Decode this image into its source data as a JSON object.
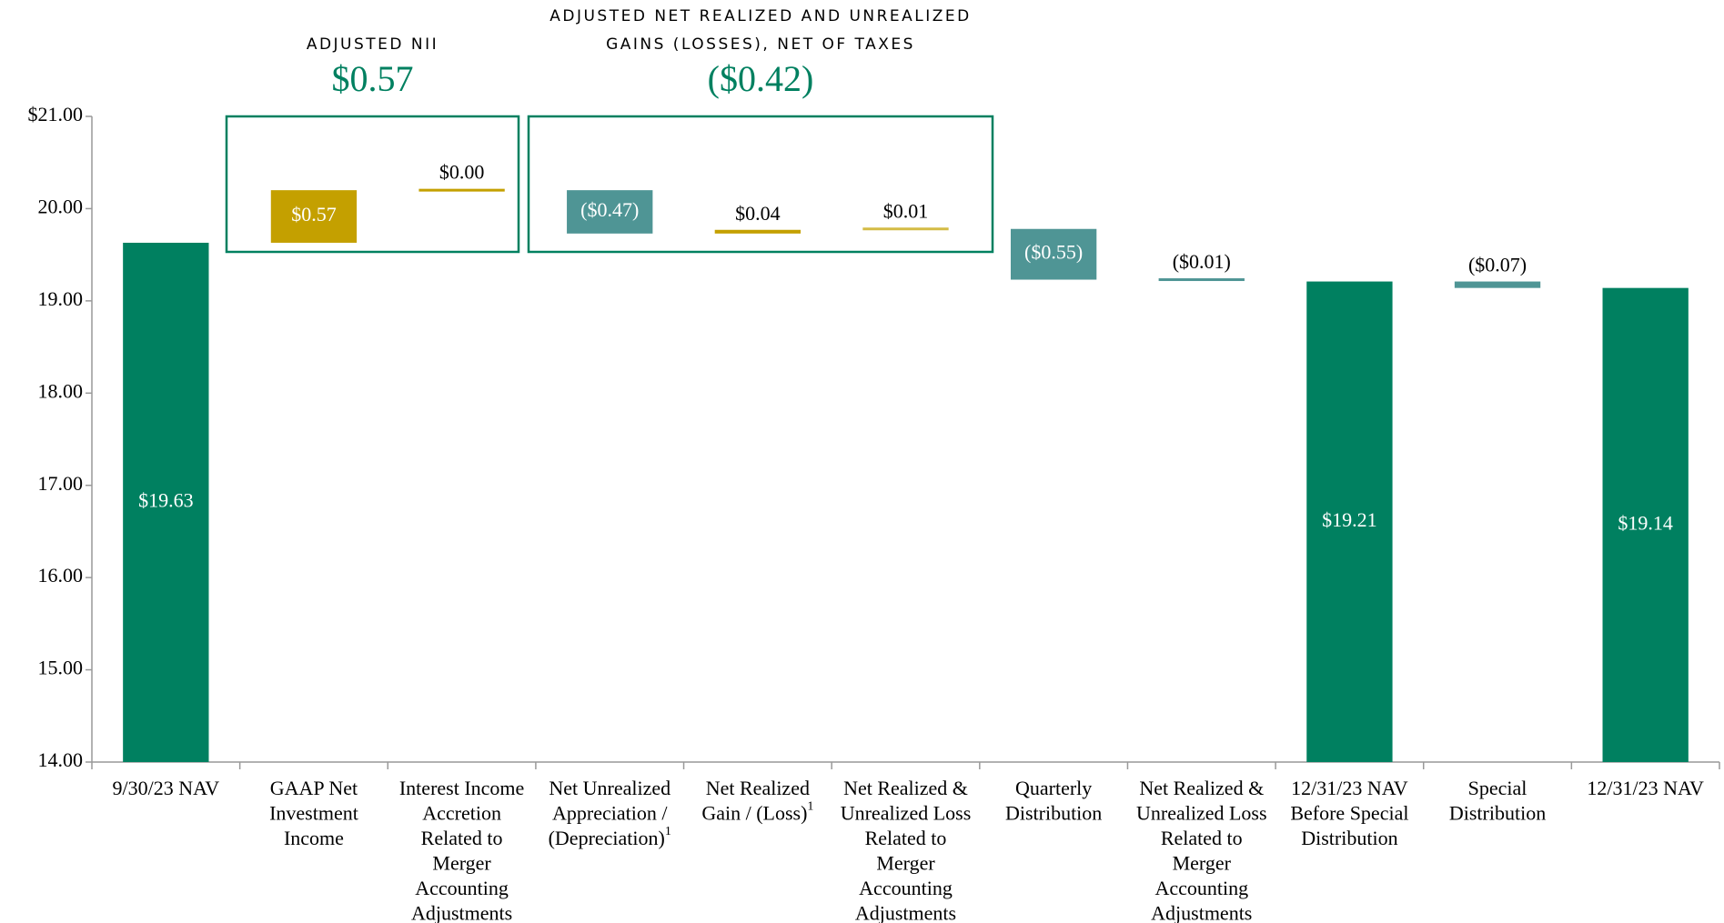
{
  "chart_data": {
    "type": "waterfall",
    "categories": [
      [
        "9/30/23 NAV"
      ],
      [
        "GAAP Net",
        "Investment",
        "Income"
      ],
      [
        "Interest Income",
        "Accretion",
        "Related to",
        "Merger",
        "Accounting",
        "Adjustments"
      ],
      [
        "Net Unrealized",
        "Appreciation /",
        "(Depreciation)"
      ],
      [
        "Net Realized",
        "Gain / (Loss)"
      ],
      [
        "Net Realized &",
        "Unrealized Loss",
        "Related to",
        "Merger",
        "Accounting",
        "Adjustments"
      ],
      [
        "Quarterly",
        "Distribution"
      ],
      [
        "Net Realized &",
        "Unrealized Loss",
        "Related to",
        "Merger",
        "Accounting",
        "Adjustments"
      ],
      [
        "12/31/23 NAV",
        "Before Special",
        "Distribution"
      ],
      [
        "Special",
        "Distribution"
      ],
      [
        "12/31/23 NAV"
      ]
    ],
    "footnotes": [
      null,
      null,
      null,
      "1",
      "1",
      null,
      null,
      null,
      null,
      null,
      null
    ],
    "values": [
      19.63,
      0.57,
      0.0,
      -0.47,
      0.04,
      0.01,
      -0.55,
      -0.01,
      19.21,
      -0.07,
      19.14
    ],
    "value_labels": [
      "$19.63",
      "$0.57",
      "$0.00",
      "($0.47)",
      "$0.04",
      "$0.01",
      "($0.55)",
      "($0.01)",
      "$19.21",
      "($0.07)",
      "$19.14"
    ],
    "colors": [
      "#008060",
      "#c4a000",
      "#c4a000",
      "#4f9595",
      "#c4a000",
      "#d4bb45",
      "#4f9595",
      "#4f9595",
      "#008060",
      "#4f9595",
      "#008060"
    ],
    "total_color": "#008060",
    "ylim": [
      14,
      21
    ],
    "yticks": [
      {
        "value": 14,
        "label": "14.00"
      },
      {
        "value": 15,
        "label": "15.00"
      },
      {
        "value": 16,
        "label": "16.00"
      },
      {
        "value": 17,
        "label": "17.00"
      },
      {
        "value": 18,
        "label": "18.00"
      },
      {
        "value": 19,
        "label": "19.00"
      },
      {
        "value": 20,
        "label": "20.00"
      },
      {
        "value": 21,
        "label": "$21.00"
      }
    ],
    "groups": [
      {
        "title": [
          "ADJUSTED NII"
        ],
        "value": 0.57,
        "value_label": "$0.57"
      },
      {
        "title": [
          "ADJUSTED NET REALIZED AND UNREALIZED",
          "GAINS (LOSSES), NET OF TAXES"
        ],
        "value": -0.42,
        "value_label": "($0.42)"
      }
    ]
  }
}
